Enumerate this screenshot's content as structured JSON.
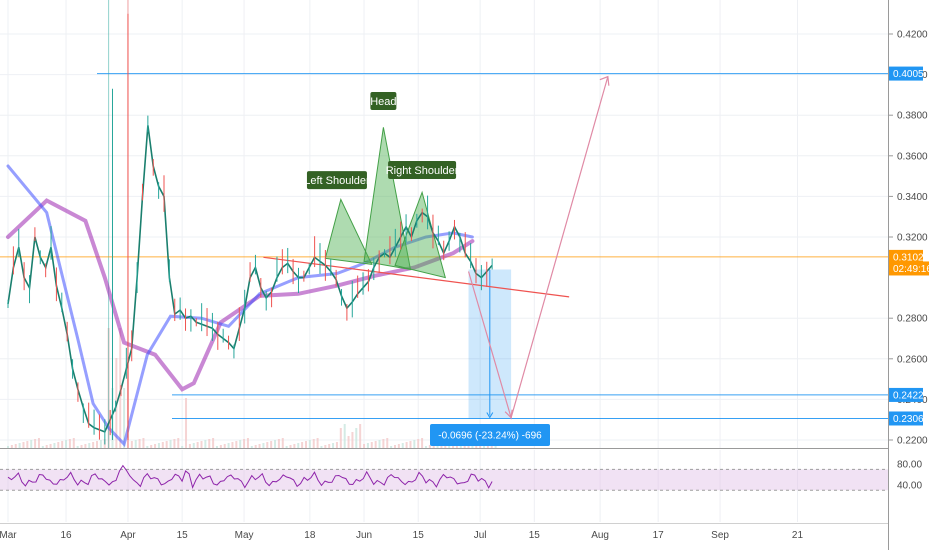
{
  "chart_data": {
    "type": "line",
    "title": "",
    "x_ticks": [
      "Mar",
      "16",
      "Apr",
      "15",
      "May",
      "18",
      "Jun",
      "15",
      "Jul",
      "15",
      "Aug",
      "17",
      "Sep",
      "21"
    ],
    "y_ticks": [
      "0.4200",
      "0.4000",
      "0.3800",
      "0.3600",
      "0.3400",
      "0.3200",
      "0.2800",
      "0.2600",
      "0.2400",
      "0.2200"
    ],
    "ylim": [
      0.22,
      0.43
    ],
    "price_badges": [
      {
        "label": "0.4005",
        "value": 0.4005,
        "color": "#2196f3"
      },
      {
        "label": "0.3102",
        "value": 0.3102,
        "color": "#ff9800"
      },
      {
        "label": "02:49:16",
        "value": 0.3045,
        "color": "#ff9800"
      },
      {
        "label": "0.2422",
        "value": 0.2422,
        "color": "#2196f3"
      },
      {
        "label": "0.2306",
        "value": 0.2306,
        "color": "#2196f3"
      }
    ],
    "annotations": [
      "Left Shoulder",
      "Head",
      "Right Shoulder"
    ],
    "measure_label": "-0.0696 (-23.24%) -696",
    "horizontal_levels": [
      0.4005,
      0.3102,
      0.2422,
      0.2306
    ],
    "neckline": {
      "x_from": "May 6",
      "y_from": 0.31,
      "x_to": "Jul 24",
      "y_to": 0.2905
    },
    "price_close": [
      0.287,
      0.305,
      0.315,
      0.3,
      0.295,
      0.32,
      0.31,
      0.305,
      0.315,
      0.296,
      0.285,
      0.272,
      0.255,
      0.245,
      0.236,
      0.228,
      0.226,
      0.225,
      0.224,
      0.23,
      0.236,
      0.245,
      0.255,
      0.265,
      0.3,
      0.34,
      0.375,
      0.355,
      0.345,
      0.34,
      0.3,
      0.282,
      0.284,
      0.28,
      0.281,
      0.278,
      0.277,
      0.276,
      0.275,
      0.272,
      0.27,
      0.268,
      0.265,
      0.275,
      0.285,
      0.3,
      0.305,
      0.295,
      0.29,
      0.293,
      0.3,
      0.305,
      0.307,
      0.303,
      0.3,
      0.3,
      0.305,
      0.31,
      0.308,
      0.306,
      0.303,
      0.299,
      0.291,
      0.285,
      0.288,
      0.292,
      0.295,
      0.298,
      0.305,
      0.31,
      0.312,
      0.31,
      0.315,
      0.32,
      0.325,
      0.32,
      0.328,
      0.332,
      0.33,
      0.322,
      0.318,
      0.312,
      0.318,
      0.325,
      0.32,
      0.312,
      0.308,
      0.302,
      0.3,
      0.303,
      0.306
    ],
    "rsi": {
      "levels": [
        80,
        40
      ],
      "upper_band": 70,
      "lower_band": 30
    }
  }
}
